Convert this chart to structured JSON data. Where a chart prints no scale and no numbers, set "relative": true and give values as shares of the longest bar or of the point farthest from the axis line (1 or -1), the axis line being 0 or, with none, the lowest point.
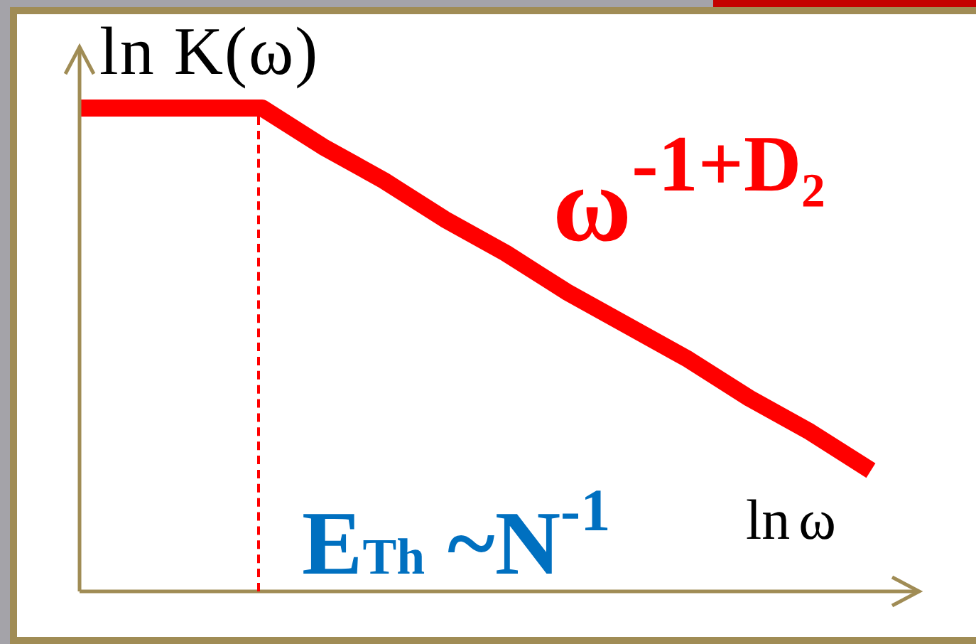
{
  "chart_data": {
    "type": "line",
    "relative": true,
    "ylabel": "ln K(ω)",
    "xlabel": "ln ω",
    "categories": [
      null,
      null,
      null,
      null,
      null,
      null,
      null,
      null,
      null,
      null,
      null,
      null,
      null,
      null
    ],
    "values": [
      1,
      1,
      1,
      1,
      0.92,
      0.85,
      0.77,
      0.7,
      0.62,
      0.55,
      0.48,
      0.4,
      0.33,
      0.25
    ],
    "color": "#ff0000",
    "annotations": [
      "ω$^{-1+D₂}$",
      "E$_{Th}$ ~N$^{-1}$"
    ],
    "legend": false,
    "grid": false,
    "marker": "none",
    "line_style": "solid"
  }
}
